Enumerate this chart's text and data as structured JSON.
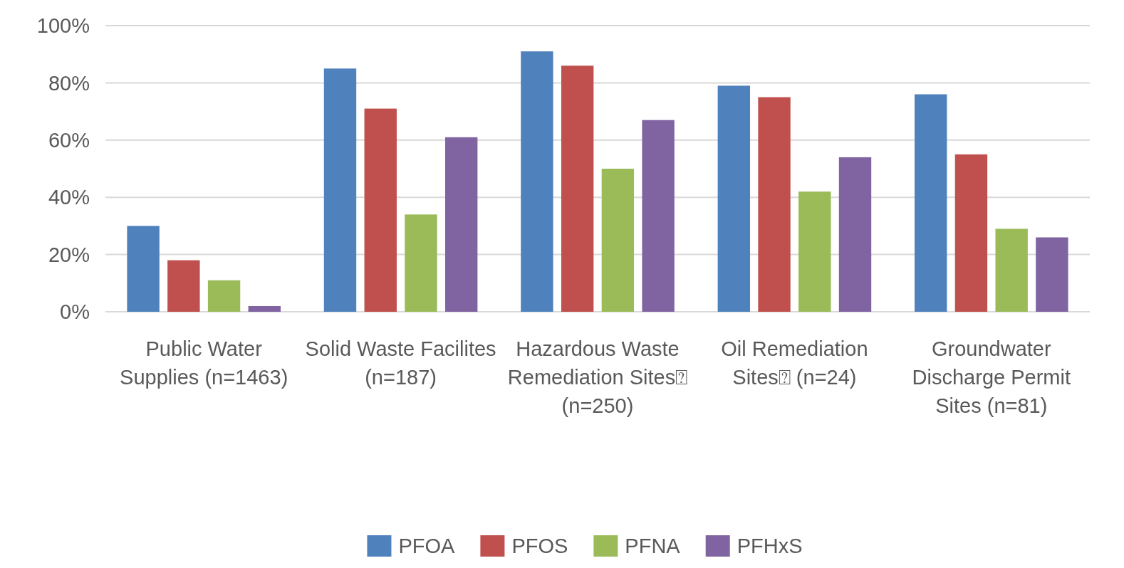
{
  "chart_data": {
    "type": "bar",
    "categories": [
      "Public Water Supplies (n=1463)",
      "Solid Waste Facilites (n=187)",
      "Hazardous Waste Remediation Sites⍰ (n=250)",
      "Oil Remediation Sites⍰ (n=24)",
      "Groundwater Discharge Permit Sites (n=81)"
    ],
    "series": [
      {
        "name": "PFOA",
        "color": "#4f81bd",
        "values": [
          30,
          85,
          91,
          79,
          76
        ]
      },
      {
        "name": "PFOS",
        "color": "#c0504d",
        "values": [
          18,
          71,
          86,
          75,
          55
        ]
      },
      {
        "name": "PFNA",
        "color": "#9bbb59",
        "values": [
          11,
          34,
          50,
          42,
          29
        ]
      },
      {
        "name": "PFHxS",
        "color": "#8064a2",
        "values": [
          2,
          61,
          67,
          54,
          26
        ]
      }
    ],
    "ylim": [
      0,
      100
    ],
    "yticks": [
      {
        "value": 0,
        "label": "0%"
      },
      {
        "value": 20,
        "label": "20%"
      },
      {
        "value": 40,
        "label": "40%"
      },
      {
        "value": 60,
        "label": "60%"
      },
      {
        "value": 80,
        "label": "80%"
      },
      {
        "value": 100,
        "label": "100%"
      }
    ],
    "grid": "y",
    "legend": "bottom"
  }
}
